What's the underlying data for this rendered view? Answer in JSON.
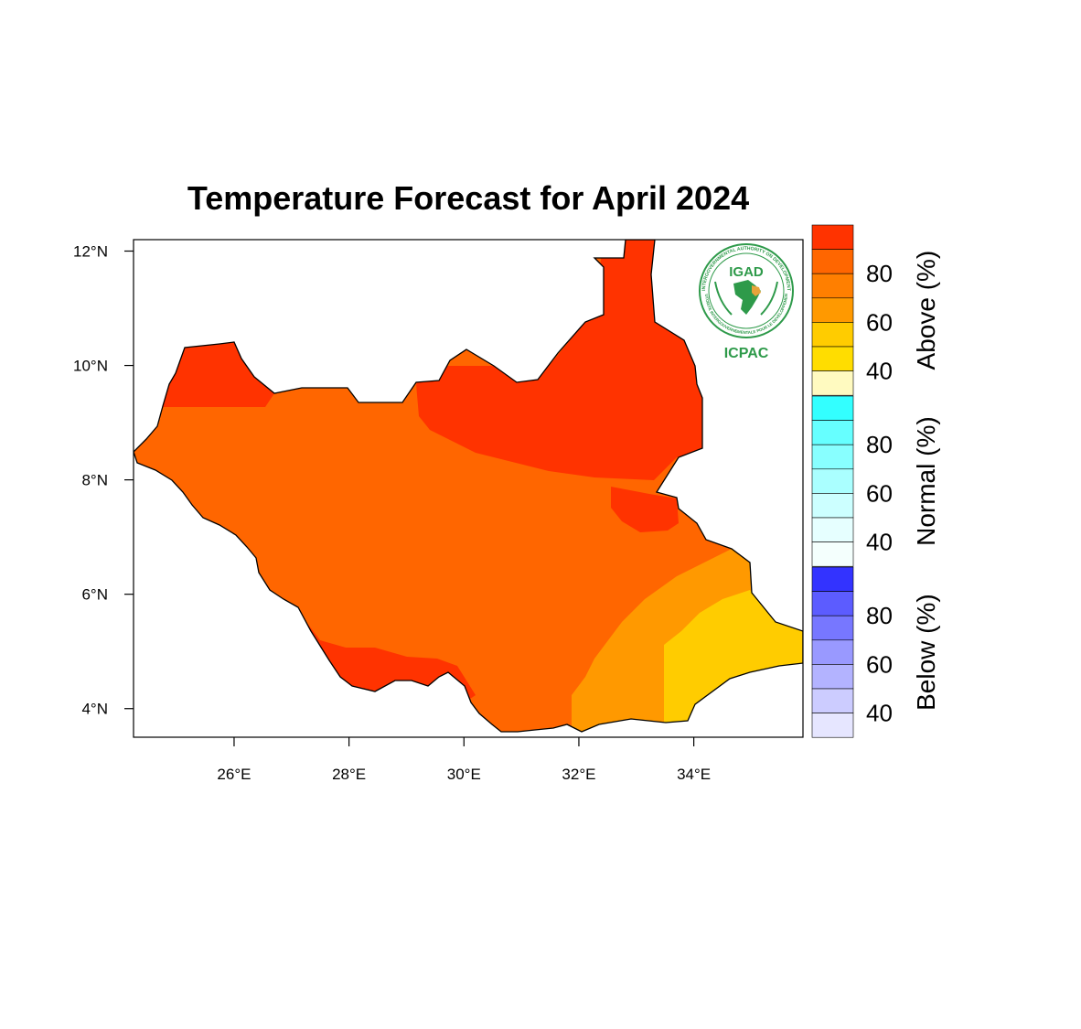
{
  "title": "Temperature Forecast for April 2024",
  "map": {
    "lon_range": [
      24.25,
      35.9
    ],
    "lat_range": [
      3.5,
      12.2
    ],
    "x_ticks": [
      {
        "value": 26,
        "label": "26°E"
      },
      {
        "value": 28,
        "label": "28°E"
      },
      {
        "value": 30,
        "label": "30°E"
      },
      {
        "value": 32,
        "label": "32°E"
      },
      {
        "value": 34,
        "label": "34°E"
      }
    ],
    "y_ticks": [
      {
        "value": 4,
        "label": "4°N"
      },
      {
        "value": 6,
        "label": "6°N"
      },
      {
        "value": 8,
        "label": "8°N"
      },
      {
        "value": 10,
        "label": "10°N"
      },
      {
        "value": 12,
        "label": "12°N"
      }
    ],
    "category_colors": {
      "above_90_100": "#ff3300",
      "above_80_90": "#ff6600",
      "above_70_80": "#ff7f00",
      "above_60_70": "#ff9900",
      "above_50_60": "#ffcc00"
    }
  },
  "logo": {
    "name": "IGAD",
    "subname": "ICPAC",
    "ring_text_top": "INTERGOVERNMENTAL AUTHORITY ON DEVELOPMENT",
    "ring_text_bottom": "AUTORITE INTERGOUVERNEMENTALE POUR LE DEVELOPPEMENT"
  },
  "colorbar": {
    "sections": [
      {
        "title": "Above (%)",
        "labels": [
          "80",
          "60",
          "40"
        ],
        "colors": [
          "#ff3300",
          "#ff6600",
          "#ff7f00",
          "#ff9900",
          "#ffcc00",
          "#ffdd00",
          "#fffac0"
        ]
      },
      {
        "title": "Normal (%)",
        "labels": [
          "80",
          "60",
          "40"
        ],
        "colors": [
          "#33ffff",
          "#66ffff",
          "#88ffff",
          "#aaffff",
          "#ccffff",
          "#e6ffff",
          "#f4fffd"
        ]
      },
      {
        "title": "Below (%)",
        "labels": [
          "80",
          "60",
          "40"
        ],
        "colors": [
          "#3333ff",
          "#5c5cff",
          "#7777ff",
          "#9999ff",
          "#b3b3ff",
          "#ccccff",
          "#e6e6ff"
        ]
      }
    ]
  }
}
